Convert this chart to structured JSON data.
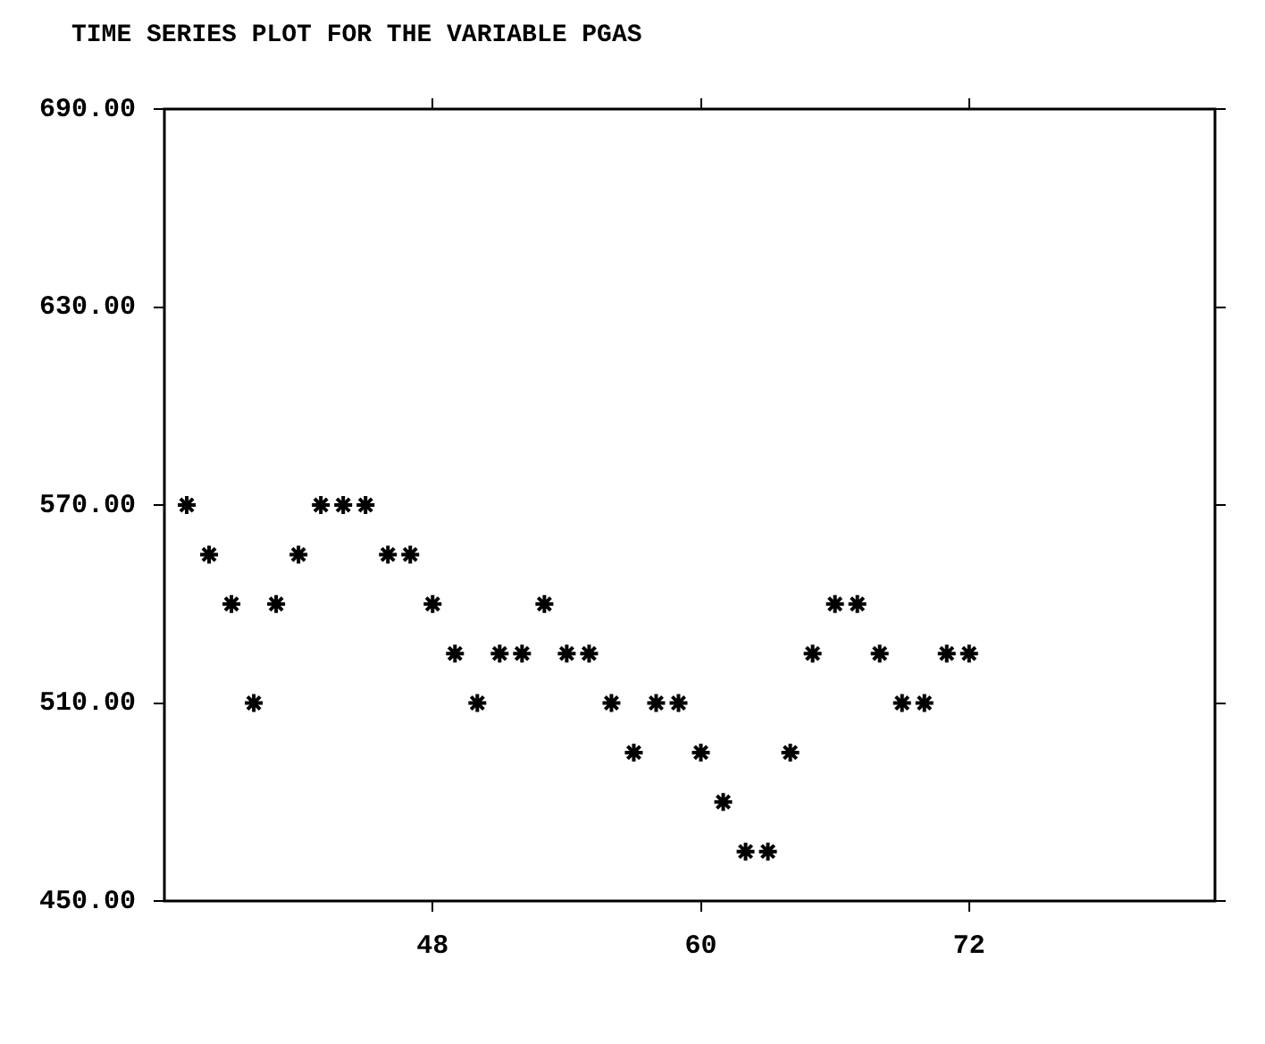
{
  "chart_data": {
    "type": "scatter",
    "title": "TIME SERIES PLOT FOR THE VARIABLE PGAS",
    "marker": "cross",
    "grid": false,
    "x": [
      37,
      38,
      39,
      40,
      41,
      42,
      43,
      44,
      45,
      46,
      47,
      48,
      49,
      50,
      51,
      52,
      53,
      54,
      55,
      56,
      57,
      58,
      59,
      60,
      61,
      62,
      63,
      64,
      65,
      66,
      67,
      68,
      69,
      70,
      71,
      72
    ],
    "series": [
      {
        "color": "#000000",
        "values": [
          570,
          555,
          540,
          510,
          540,
          555,
          570,
          570,
          570,
          555,
          555,
          540,
          525,
          510,
          525,
          525,
          540,
          525,
          525,
          510,
          495,
          510,
          510,
          495,
          480,
          465,
          465,
          495,
          525,
          540,
          540,
          525,
          510,
          510,
          525,
          525
        ]
      }
    ],
    "xlim": [
      36,
      83
    ],
    "xticks": [
      48,
      60,
      72
    ],
    "ylim": [
      450,
      690
    ],
    "yticks": [
      {
        "value": 450,
        "label": "450.00"
      },
      {
        "value": 510,
        "label": "510.00"
      },
      {
        "value": 570,
        "label": "570.00"
      },
      {
        "value": 630,
        "label": "630.00"
      },
      {
        "value": 690,
        "label": "690.00"
      }
    ]
  }
}
